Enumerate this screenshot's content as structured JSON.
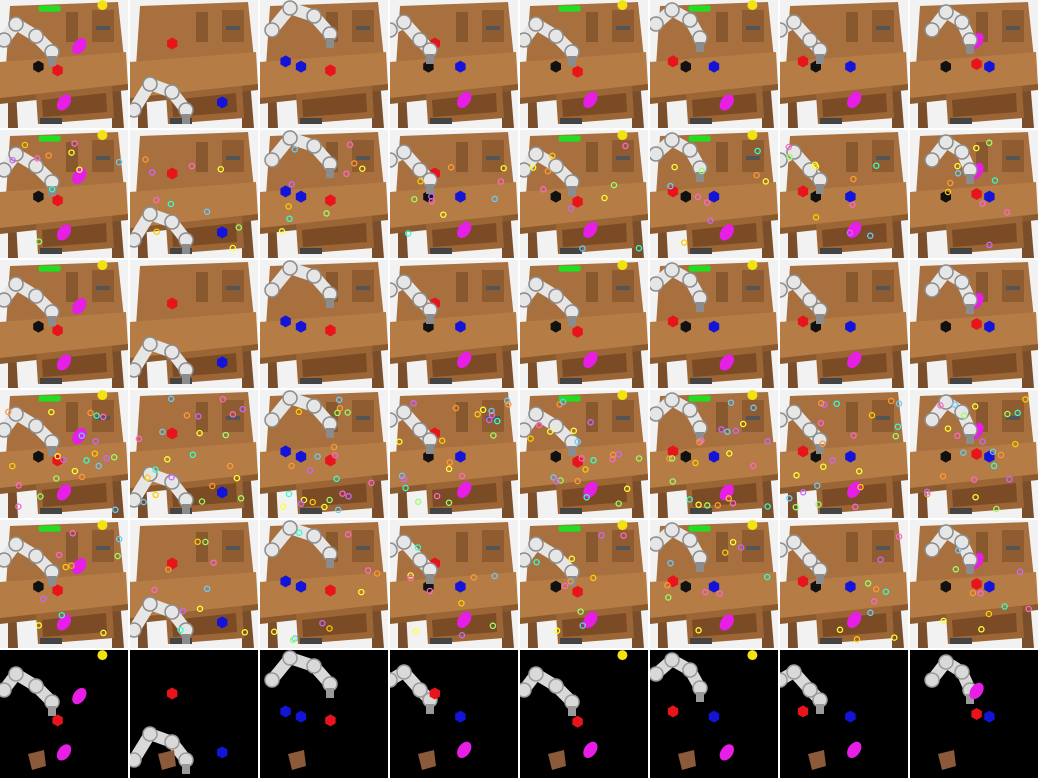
{
  "grid": {
    "rows": [
      {
        "row": "rgb",
        "dots": "none"
      },
      {
        "row": "rgb",
        "dots": "few"
      },
      {
        "row": "rgb",
        "dots": "none"
      },
      {
        "row": "rgb",
        "dots": "many"
      },
      {
        "row": "rgb",
        "dots": "few"
      },
      {
        "row": "mask",
        "dots": "none"
      }
    ],
    "scenes": [
      {
        "view": "arm-left",
        "objects": [
          [
            "black",
            0.3,
            0.52
          ],
          [
            "red",
            0.45,
            0.55
          ],
          [
            "magenta",
            0.62,
            0.36
          ],
          [
            "green-bar",
            0.38,
            0.06
          ],
          [
            "yellow",
            0.8,
            0.04
          ]
        ],
        "drawer_object": [
          "magenta",
          0.5,
          0.8
        ]
      },
      {
        "view": "arm-low",
        "objects": [
          [
            "red",
            0.33,
            0.34
          ],
          [
            "blue",
            0.72,
            0.8
          ]
        ],
        "drawer_object": null
      },
      {
        "view": "arm-top",
        "objects": [
          [
            "blue",
            0.2,
            0.48
          ],
          [
            "blue",
            0.32,
            0.52
          ],
          [
            "red",
            0.55,
            0.55
          ]
        ],
        "drawer_object": null
      },
      {
        "view": "arm-far-left",
        "objects": [
          [
            "red",
            0.35,
            0.34
          ],
          [
            "black",
            0.3,
            0.52
          ],
          [
            "blue",
            0.55,
            0.52
          ]
        ],
        "drawer_object": [
          "magenta",
          0.58,
          0.78
        ]
      },
      {
        "view": "arm-left",
        "objects": [
          [
            "black",
            0.28,
            0.52
          ],
          [
            "red",
            0.45,
            0.56
          ],
          [
            "green-bar",
            0.38,
            0.06
          ],
          [
            "yellow",
            0.8,
            0.04
          ]
        ],
        "drawer_object": [
          "magenta",
          0.55,
          0.78
        ]
      },
      {
        "view": "arm-top-left",
        "objects": [
          [
            "red",
            0.18,
            0.48
          ],
          [
            "black",
            0.28,
            0.52
          ],
          [
            "blue",
            0.5,
            0.52
          ],
          [
            "green-bar",
            0.38,
            0.06
          ],
          [
            "yellow",
            0.8,
            0.04
          ]
        ],
        "drawer_object": [
          "magenta",
          0.6,
          0.8
        ]
      },
      {
        "view": "arm-far-left",
        "objects": [
          [
            "red",
            0.18,
            0.48
          ],
          [
            "black",
            0.28,
            0.52
          ],
          [
            "blue",
            0.55,
            0.52
          ]
        ],
        "drawer_object": [
          "magenta",
          0.58,
          0.78
        ]
      },
      {
        "view": "arm-top-center",
        "objects": [
          [
            "black",
            0.28,
            0.52
          ],
          [
            "red",
            0.52,
            0.5
          ],
          [
            "blue",
            0.62,
            0.52
          ],
          [
            "magenta",
            0.52,
            0.32
          ]
        ],
        "drawer_object": null
      }
    ]
  }
}
